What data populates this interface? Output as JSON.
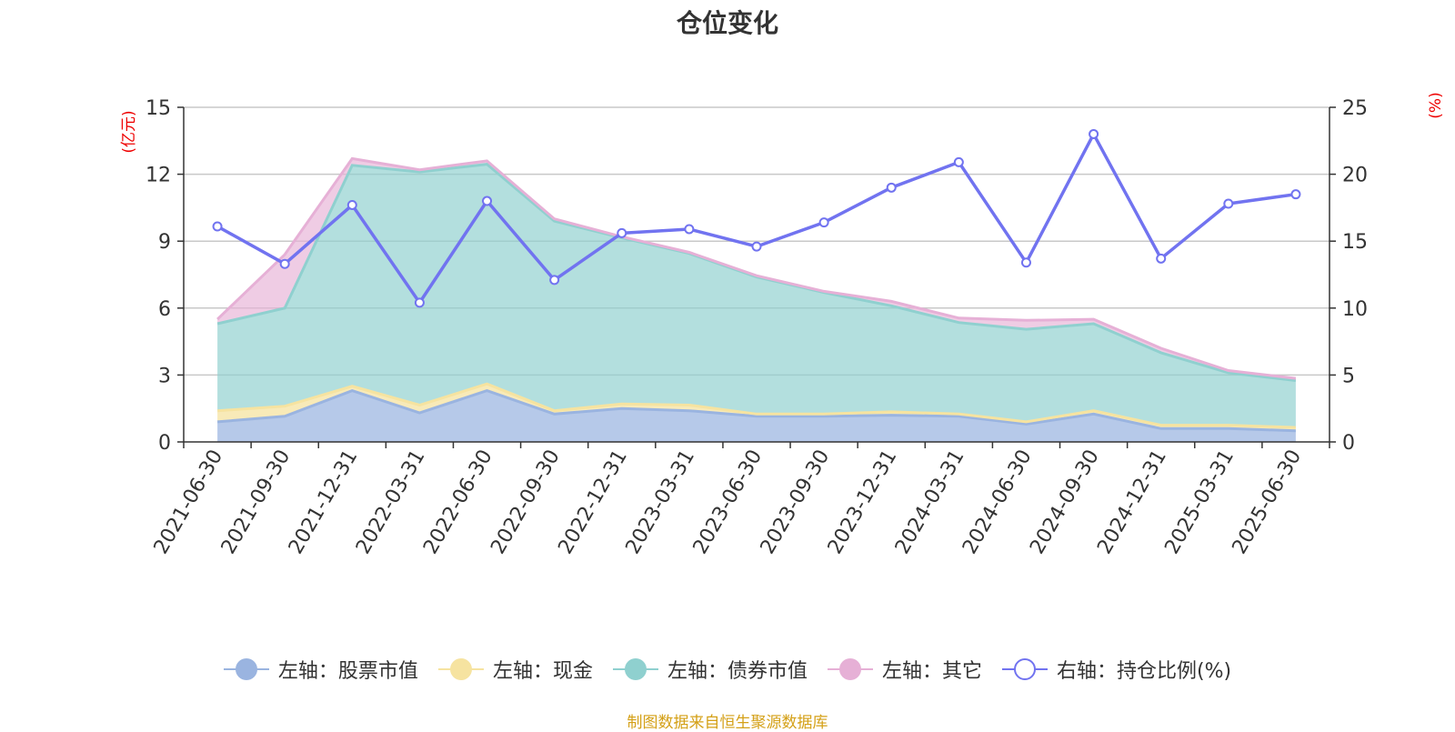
{
  "title": "仓位变化",
  "source_note": "制图数据来自恒生聚源数据库",
  "left_unit": "(亿元)",
  "right_unit": "(%)",
  "colors": {
    "stock": "#9ab4e0",
    "cash": "#f6e3a0",
    "bond": "#8fd0cf",
    "other": "#e6b0d6",
    "ratio": "#7173f0",
    "unit": "#ee0000",
    "source": "#d4a017"
  },
  "legend": [
    {
      "key": "stock",
      "label": "左轴：股票市值",
      "icon": "filled-circle-icon"
    },
    {
      "key": "cash",
      "label": "左轴：现金",
      "icon": "filled-circle-icon"
    },
    {
      "key": "bond",
      "label": "左轴：债券市值",
      "icon": "filled-circle-icon"
    },
    {
      "key": "other",
      "label": "左轴：其它",
      "icon": "filled-circle-icon"
    },
    {
      "key": "ratio",
      "label": "右轴：持仓比例(%)",
      "icon": "hollow-circle-icon"
    }
  ],
  "chart_data": {
    "type": "area",
    "title": "仓位变化",
    "x": [
      "2021-06-30",
      "2021-09-30",
      "2021-12-31",
      "2022-03-31",
      "2022-06-30",
      "2022-09-30",
      "2022-12-31",
      "2023-03-31",
      "2023-06-30",
      "2023-09-30",
      "2023-12-31",
      "2024-03-31",
      "2024-06-30",
      "2024-09-30",
      "2024-12-31",
      "2025-03-31",
      "2025-06-30"
    ],
    "y_left_ticks": [
      "0",
      "3",
      "6",
      "9",
      "12",
      "15"
    ],
    "y_right_ticks": [
      "0",
      "5",
      "10",
      "15",
      "20",
      "25"
    ],
    "y_left_range": [
      0,
      15
    ],
    "y_right_range": [
      0,
      25
    ],
    "stacked": true,
    "series": [
      {
        "name": "左轴：股票市值",
        "axis": "left",
        "values": [
          0.9,
          1.15,
          2.3,
          1.3,
          2.3,
          1.25,
          1.5,
          1.4,
          1.15,
          1.15,
          1.2,
          1.15,
          0.8,
          1.25,
          0.6,
          0.6,
          0.5
        ]
      },
      {
        "name": "左轴：现金",
        "axis": "left",
        "values": [
          0.5,
          0.45,
          0.2,
          0.35,
          0.3,
          0.15,
          0.2,
          0.25,
          0.1,
          0.1,
          0.15,
          0.1,
          0.1,
          0.15,
          0.15,
          0.15,
          0.15
        ]
      },
      {
        "name": "左轴：债券市值",
        "axis": "left",
        "values": [
          3.9,
          4.4,
          9.9,
          10.45,
          9.85,
          8.5,
          7.45,
          6.8,
          6.15,
          5.45,
          4.75,
          4.1,
          4.15,
          3.9,
          3.25,
          2.35,
          2.1
        ]
      },
      {
        "name": "左轴：其它",
        "axis": "left",
        "values": [
          0.2,
          2.4,
          0.3,
          0.1,
          0.15,
          0.1,
          0.05,
          0.05,
          0.05,
          0.05,
          0.2,
          0.2,
          0.4,
          0.2,
          0.2,
          0.1,
          0.1
        ]
      },
      {
        "name": "右轴：持仓比例(%)",
        "axis": "right",
        "type": "line",
        "values": [
          16.1,
          13.3,
          17.7,
          10.4,
          18.0,
          12.1,
          15.6,
          15.9,
          14.6,
          16.4,
          19.0,
          20.9,
          13.4,
          23.0,
          13.7,
          17.8,
          18.5
        ]
      }
    ]
  }
}
